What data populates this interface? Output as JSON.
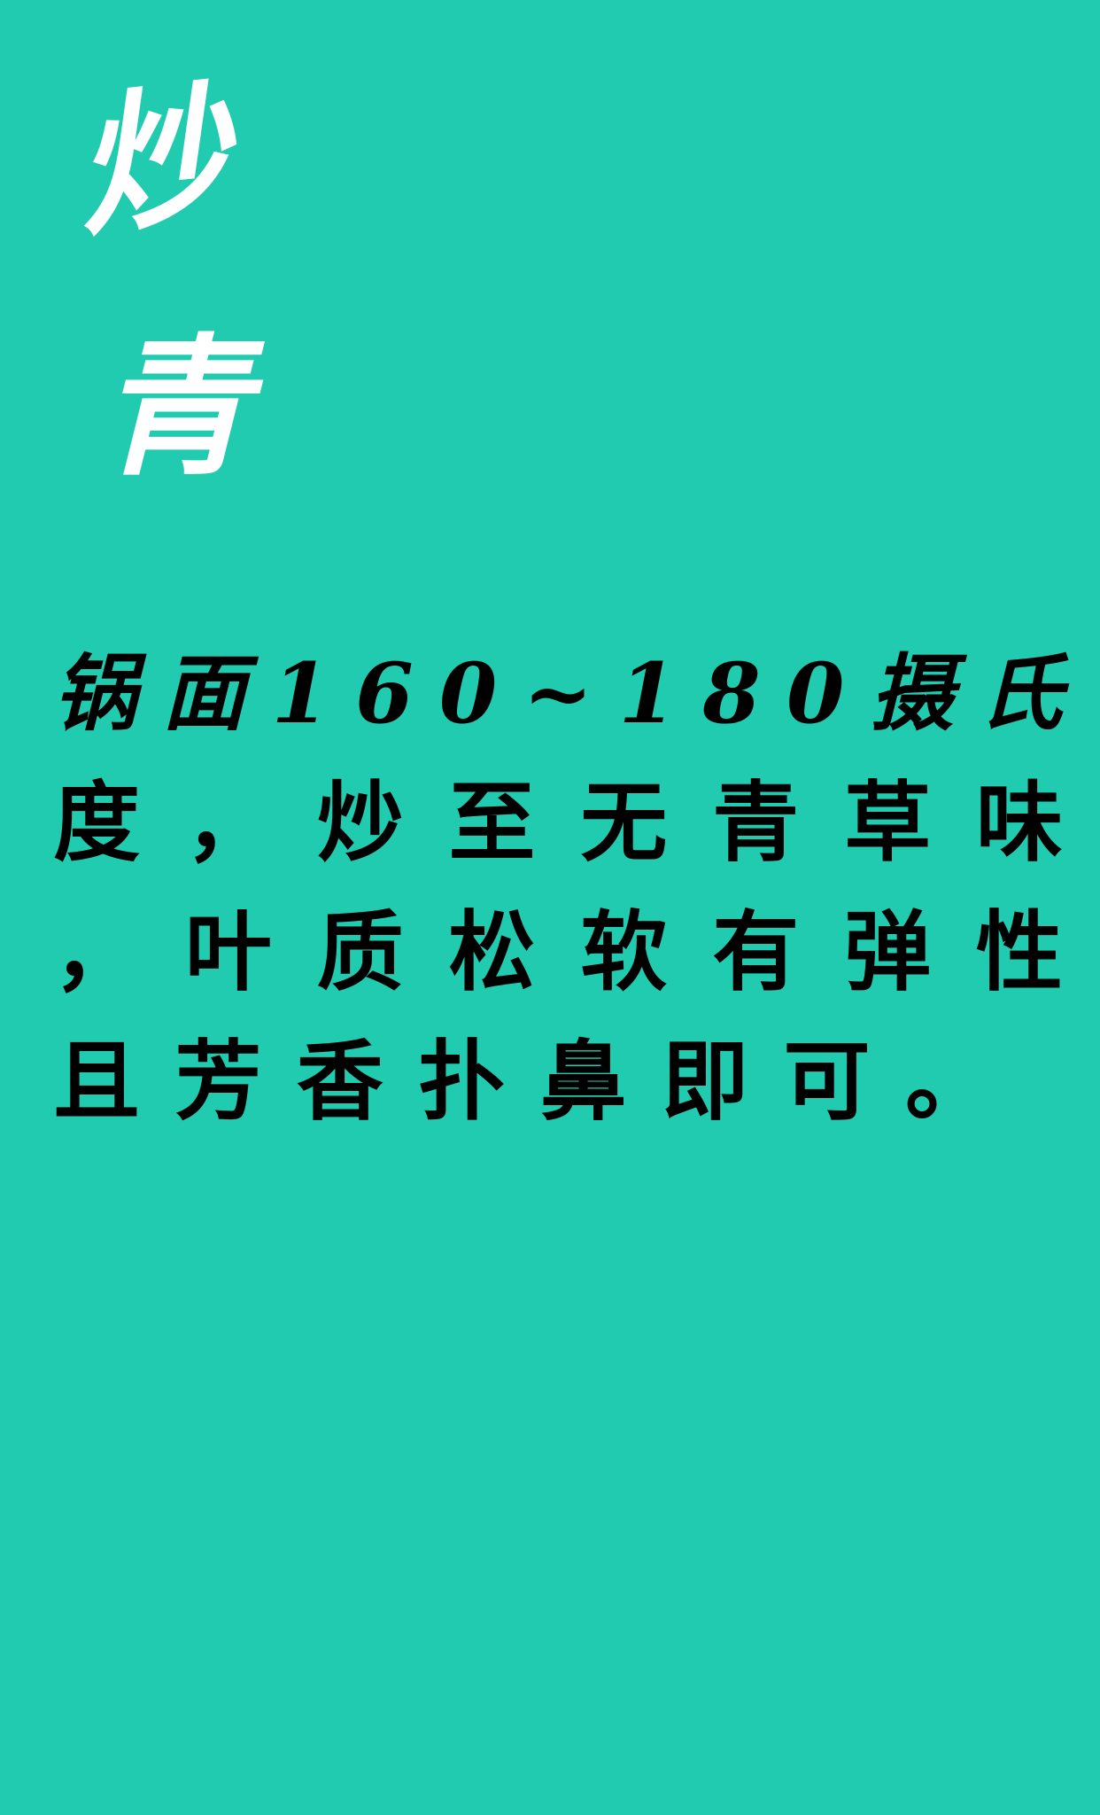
{
  "title": {
    "char1": "炒",
    "char2": "青"
  },
  "body": {
    "lines": [
      "锅面160~180摄氏",
      "度，炒至无青草味",
      "，叶质松软有弹性",
      "且芳香扑鼻即可。"
    ]
  },
  "colors": {
    "background": "#21CBB0",
    "title": "#FFFFFF",
    "text": "#000000"
  }
}
